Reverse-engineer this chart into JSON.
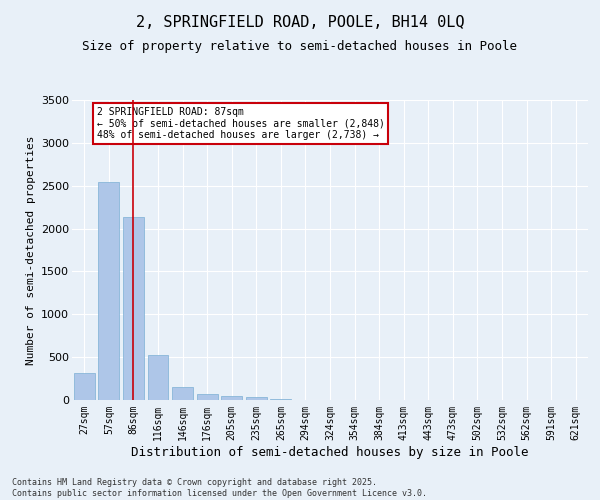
{
  "title1": "2, SPRINGFIELD ROAD, POOLE, BH14 0LQ",
  "title2": "Size of property relative to semi-detached houses in Poole",
  "xlabel": "Distribution of semi-detached houses by size in Poole",
  "ylabel": "Number of semi-detached properties",
  "categories": [
    "27sqm",
    "57sqm",
    "86sqm",
    "116sqm",
    "146sqm",
    "176sqm",
    "205sqm",
    "235sqm",
    "265sqm",
    "294sqm",
    "324sqm",
    "354sqm",
    "384sqm",
    "413sqm",
    "443sqm",
    "473sqm",
    "502sqm",
    "532sqm",
    "562sqm",
    "591sqm",
    "621sqm"
  ],
  "values": [
    310,
    2540,
    2130,
    530,
    150,
    75,
    50,
    30,
    10,
    0,
    0,
    0,
    0,
    0,
    0,
    0,
    0,
    0,
    0,
    0,
    0
  ],
  "bar_color": "#aec6e8",
  "bar_edgecolor": "#7bafd4",
  "highlight_index": 2,
  "highlight_color": "#c8000a",
  "ylim": [
    0,
    3500
  ],
  "yticks": [
    0,
    500,
    1000,
    1500,
    2000,
    2500,
    3000,
    3500
  ],
  "annotation_line1": "2 SPRINGFIELD ROAD: 87sqm",
  "annotation_line2": "← 50% of semi-detached houses are smaller (2,848)",
  "annotation_line3": "48% of semi-detached houses are larger (2,738) →",
  "annotation_box_color": "#c8000a",
  "bg_color": "#e8f0f8",
  "footnote1": "Contains HM Land Registry data © Crown copyright and database right 2025.",
  "footnote2": "Contains public sector information licensed under the Open Government Licence v3.0.",
  "title1_fontsize": 11,
  "title2_fontsize": 9,
  "tick_fontsize": 7,
  "label_fontsize": 9,
  "ann_fontsize": 7
}
